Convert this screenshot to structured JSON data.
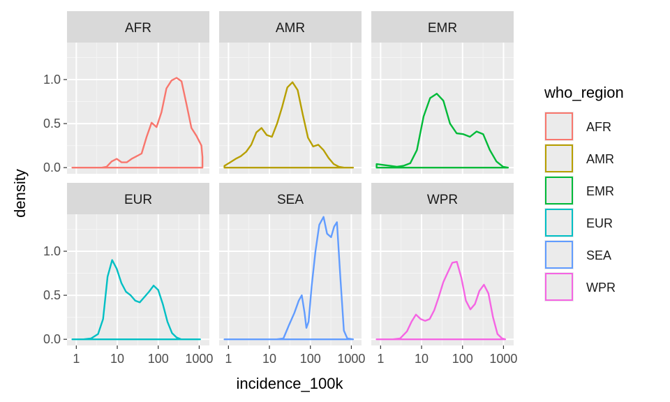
{
  "chart_data": {
    "type": "area",
    "facet_by": "who_region",
    "xlabel": "incidence_100k",
    "ylabel": "density",
    "x_scale": "log10",
    "xlim": [
      0.75,
      1400
    ],
    "ylim": [
      -0.07,
      1.42
    ],
    "x_ticks": [
      1,
      10,
      100,
      1000
    ],
    "x_tick_labels": [
      "1",
      "10",
      "100",
      "1000"
    ],
    "y_ticks": [
      0,
      0.5,
      1
    ],
    "y_tick_labels": [
      "0.0",
      "0.5",
      "1.0"
    ],
    "grid": true,
    "legend": {
      "title": "who_region",
      "position": "right",
      "entries": [
        "AFR",
        "AMR",
        "EMR",
        "EUR",
        "SEA",
        "WPR"
      ]
    },
    "series": [
      {
        "name": "AFR",
        "color": "#F8766D",
        "x": [
          0.8,
          2,
          3,
          4.2,
          5.5,
          7.3,
          9.7,
          12.8,
          17,
          22.4,
          29.7,
          39.3,
          52,
          68.7,
          90.9,
          120,
          159,
          211,
          280,
          370,
          489,
          647,
          856,
          1133,
          1200
        ],
        "y": [
          0,
          0,
          0,
          0,
          0.01,
          0.07,
          0.1,
          0.06,
          0.06,
          0.1,
          0.13,
          0.16,
          0.35,
          0.51,
          0.46,
          0.63,
          0.9,
          0.99,
          1.02,
          0.98,
          0.72,
          0.45,
          0.36,
          0.25,
          0.12
        ]
      },
      {
        "name": "AMR",
        "color": "#B79F00",
        "x": [
          0.8,
          1.1,
          1.5,
          2,
          2.7,
          3.6,
          4.8,
          6.4,
          8.6,
          11.5,
          15.4,
          20.5,
          27.4,
          36.6,
          48.9,
          65.4,
          87.3,
          116.7,
          156,
          208,
          278,
          372,
          497,
          664,
          887,
          1100
        ],
        "y": [
          0.02,
          0.06,
          0.1,
          0.13,
          0.18,
          0.26,
          0.4,
          0.45,
          0.37,
          0.35,
          0.5,
          0.69,
          0.91,
          0.97,
          0.88,
          0.6,
          0.34,
          0.24,
          0.26,
          0.2,
          0.11,
          0.04,
          0.01,
          0,
          0,
          0
        ]
      },
      {
        "name": "EMR",
        "color": "#00BA38",
        "x": [
          0.8,
          1.2,
          1.7,
          2.5,
          3.6,
          5.3,
          7.7,
          11.2,
          16.2,
          23.5,
          34.1,
          49.5,
          71.9,
          104.3,
          151.4,
          219.8,
          319,
          463,
          672,
          976,
          1290
        ],
        "y": [
          0.04,
          0.03,
          0.02,
          0.01,
          0.02,
          0.05,
          0.2,
          0.58,
          0.79,
          0.84,
          0.76,
          0.5,
          0.39,
          0.38,
          0.35,
          0.41,
          0.38,
          0.2,
          0.07,
          0.01,
          0
        ]
      },
      {
        "name": "EUR",
        "color": "#00BFC4",
        "x": [
          0.8,
          1.5,
          2.3,
          3.4,
          4.5,
          5.8,
          7.5,
          9.7,
          12.6,
          16.3,
          21.2,
          27.4,
          35.5,
          46,
          59.6,
          77.2,
          100,
          129.5,
          167.7,
          217,
          281,
          364,
          471,
          610,
          790,
          1050
        ],
        "y": [
          0,
          0,
          0.01,
          0.06,
          0.23,
          0.71,
          0.9,
          0.8,
          0.64,
          0.54,
          0.5,
          0.44,
          0.42,
          0.48,
          0.54,
          0.61,
          0.56,
          0.4,
          0.2,
          0.07,
          0.02,
          0,
          0,
          0,
          0,
          0
        ]
      },
      {
        "name": "SEA",
        "color": "#619CFF",
        "x": [
          0.8,
          5,
          15,
          22,
          30,
          40.7,
          52,
          61.6,
          72,
          80,
          90.6,
          107,
          133,
          165,
          210,
          255,
          320,
          380,
          445,
          540,
          656,
          797,
          1100
        ],
        "y": [
          0,
          0,
          0,
          0.01,
          0.16,
          0.3,
          0.44,
          0.5,
          0.3,
          0.13,
          0.2,
          0.6,
          1.0,
          1.3,
          1.39,
          1.2,
          1.16,
          1.28,
          1.33,
          0.7,
          0.1,
          0.01,
          0
        ]
      },
      {
        "name": "WPR",
        "color": "#F564E3",
        "x": [
          0.8,
          2,
          3,
          4.4,
          5.7,
          7.3,
          9.5,
          12.2,
          15.8,
          20.4,
          26.2,
          33.9,
          43.7,
          56.3,
          72.6,
          93.6,
          120.7,
          155.5,
          200.5,
          258.5,
          333.3,
          430,
          554,
          714,
          921,
          1100
        ],
        "y": [
          0,
          0,
          0.01,
          0.09,
          0.2,
          0.28,
          0.23,
          0.21,
          0.23,
          0.33,
          0.48,
          0.65,
          0.76,
          0.87,
          0.88,
          0.7,
          0.44,
          0.34,
          0.4,
          0.55,
          0.62,
          0.52,
          0.25,
          0.06,
          0.01,
          0
        ]
      }
    ]
  }
}
